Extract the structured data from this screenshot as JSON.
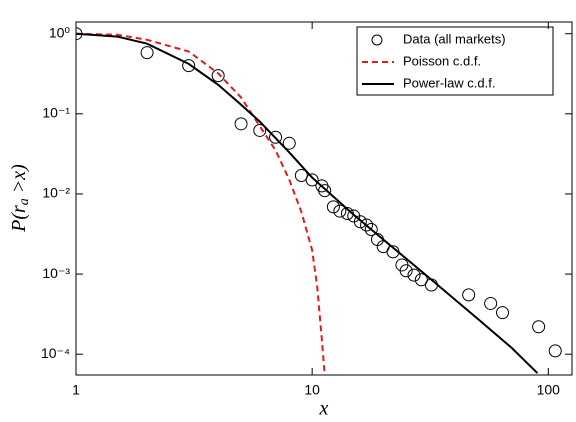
{
  "chart_data": {
    "type": "scatter",
    "xlabel": "x",
    "ylabel": [
      "P(r",
      "a",
      " >x)"
    ],
    "log_x": true,
    "log_y": true,
    "xlim": [
      1,
      126
    ],
    "ylim": [
      5.5e-05,
      1.4
    ],
    "xticks": [
      1,
      10,
      100
    ],
    "yticks": [
      {
        "value": 1,
        "label": "10⁰"
      },
      {
        "value": 0.1,
        "label": "10⁻¹"
      },
      {
        "value": 0.01,
        "label": "10⁻²"
      },
      {
        "value": 0.001,
        "label": "10⁻³"
      },
      {
        "value": 0.0001,
        "label": "10⁻⁴"
      }
    ],
    "legend": "upper right",
    "series": [
      {
        "name": "Data (all markets)",
        "kind": "markers",
        "color": "#000000",
        "x": [
          1,
          2,
          3,
          4,
          5,
          6,
          7,
          8,
          9,
          10,
          11,
          11.3,
          12.3,
          13.1,
          14.1,
          15,
          16,
          17,
          17.8,
          18.9,
          20,
          22,
          24,
          25,
          27,
          29,
          32,
          46,
          57,
          64,
          91,
          107
        ],
        "values": [
          1,
          0.58,
          0.4,
          0.3,
          0.075,
          0.062,
          0.051,
          0.043,
          0.017,
          0.015,
          0.0126,
          0.011,
          0.0069,
          0.0061,
          0.0057,
          0.0053,
          0.0045,
          0.0041,
          0.0036,
          0.0027,
          0.0022,
          0.0019,
          0.0013,
          0.0011,
          0.00097,
          0.00085,
          0.00073,
          0.00055,
          0.00043,
          0.00033,
          0.00022,
          0.00011
        ]
      },
      {
        "name": "Poisson c.d.f.",
        "kind": "dashed",
        "color": "#e41a1c",
        "x": [
          1,
          1.5,
          2,
          3,
          4,
          5,
          6,
          7,
          8,
          9,
          10,
          10.5,
          11,
          11.3
        ],
        "values": [
          1,
          0.97,
          0.84,
          0.6,
          0.32,
          0.16,
          0.07,
          0.035,
          0.015,
          0.006,
          0.002,
          0.0007,
          0.00015,
          5.5e-05
        ]
      },
      {
        "name": "Power-law c.d.f.",
        "kind": "solid",
        "color": "#000000",
        "x": [
          1,
          1.5,
          2,
          3,
          4,
          5,
          6,
          8,
          10,
          15,
          20,
          30,
          50,
          70,
          90
        ],
        "values": [
          1,
          0.92,
          0.75,
          0.42,
          0.23,
          0.13,
          0.08,
          0.033,
          0.016,
          0.0055,
          0.0027,
          0.001,
          0.00028,
          0.00012,
          5.8e-05
        ]
      }
    ]
  }
}
